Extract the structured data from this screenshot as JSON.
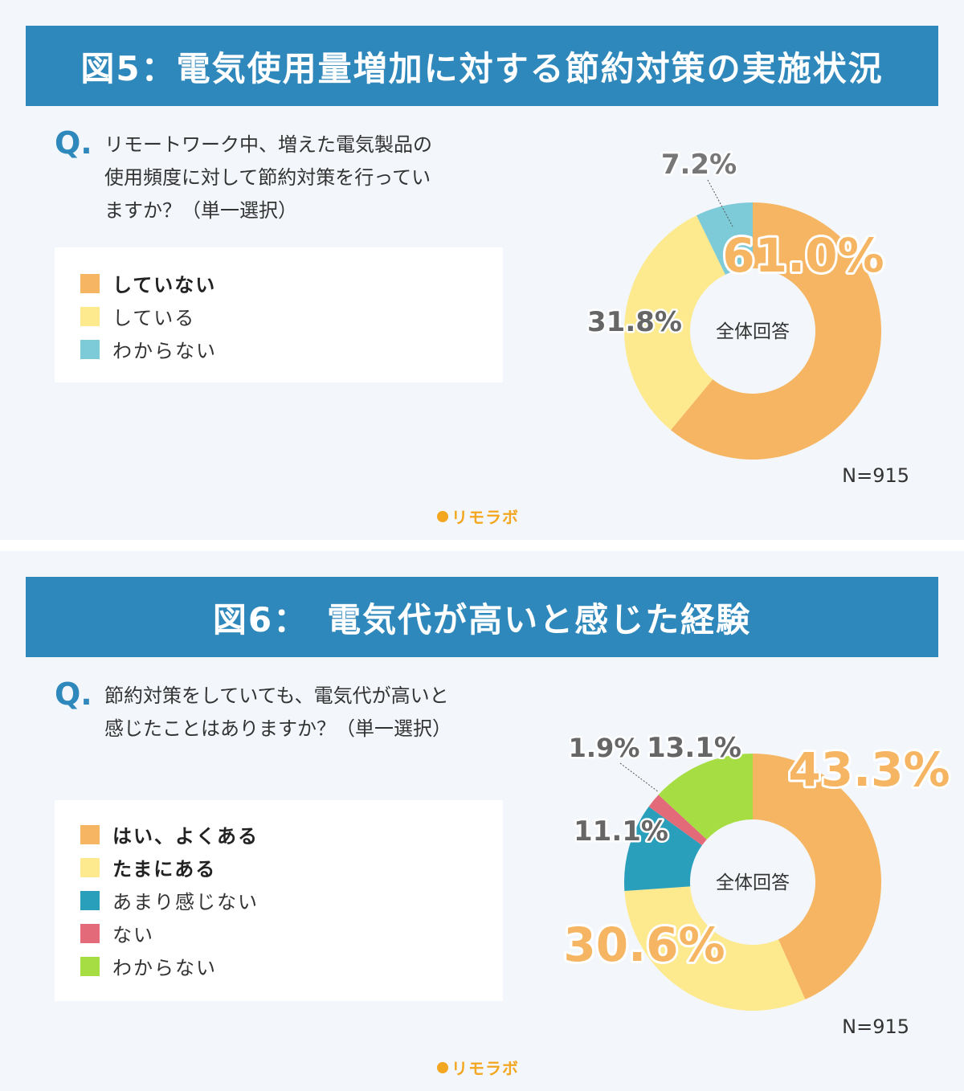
{
  "colors": {
    "title_bg": "#2f88bb",
    "orange": "#f5b562",
    "yellow": "#fde98e",
    "light_blue": "#7dcad8",
    "teal": "#2a9fbb",
    "pink": "#e36b79",
    "green": "#a5dd43",
    "brand": "#f3a61f"
  },
  "figures": [
    {
      "title": "図5：電気使用量増加に対する節約対策の実施状況",
      "question_mark": "Q.",
      "question": "リモートワーク中、増えた電気製品の\n使用頻度に対して節約対策を行ってい\nますか？（単一選択）",
      "legend": [
        {
          "label": "していない",
          "bold": true,
          "icon": "orange-square"
        },
        {
          "label": "している",
          "bold": false,
          "icon": "yellow-square"
        },
        {
          "label": "わからない",
          "bold": false,
          "icon": "light-blue-square"
        }
      ],
      "center_label": "全体回答",
      "n": "N=915",
      "brand": "リモラボ"
    },
    {
      "title": "図6：　電気代が高いと感じた経験",
      "question_mark": "Q.",
      "question": "節約対策をしていても、電気代が高いと\n感じたことはありますか？（単一選択）",
      "legend": [
        {
          "label": "はい、よくある",
          "bold": true,
          "icon": "orange-square"
        },
        {
          "label": "たまにある",
          "bold": true,
          "icon": "yellow-square"
        },
        {
          "label": "あまり感じない",
          "bold": false,
          "icon": "teal-square"
        },
        {
          "label": "ない",
          "bold": false,
          "icon": "pink-square"
        },
        {
          "label": "わからない",
          "bold": false,
          "icon": "green-square"
        }
      ],
      "center_label": "全体回答",
      "n": "N=915",
      "brand": "リモラボ"
    }
  ],
  "chart_data": [
    {
      "type": "pie",
      "style": "donut",
      "categories": [
        "していない",
        "している",
        "わからない"
      ],
      "values": [
        61.0,
        31.8,
        7.2
      ],
      "value_labels": [
        "61.0%",
        "31.8%",
        "7.2%"
      ],
      "colors": [
        "#f5b562",
        "#fde98e",
        "#7dcad8"
      ],
      "center_label": "全体回答"
    },
    {
      "type": "pie",
      "style": "donut",
      "categories": [
        "はい、よくある",
        "たまにある",
        "あまり感じない",
        "ない",
        "わからない"
      ],
      "values": [
        43.3,
        30.6,
        11.1,
        1.9,
        13.1
      ],
      "value_labels": [
        "43.3%",
        "30.6%",
        "11.1%",
        "1.9%",
        "13.1%"
      ],
      "colors": [
        "#f5b562",
        "#fde98e",
        "#2a9fbb",
        "#e36b79",
        "#a5dd43"
      ],
      "center_label": "全体回答"
    }
  ]
}
